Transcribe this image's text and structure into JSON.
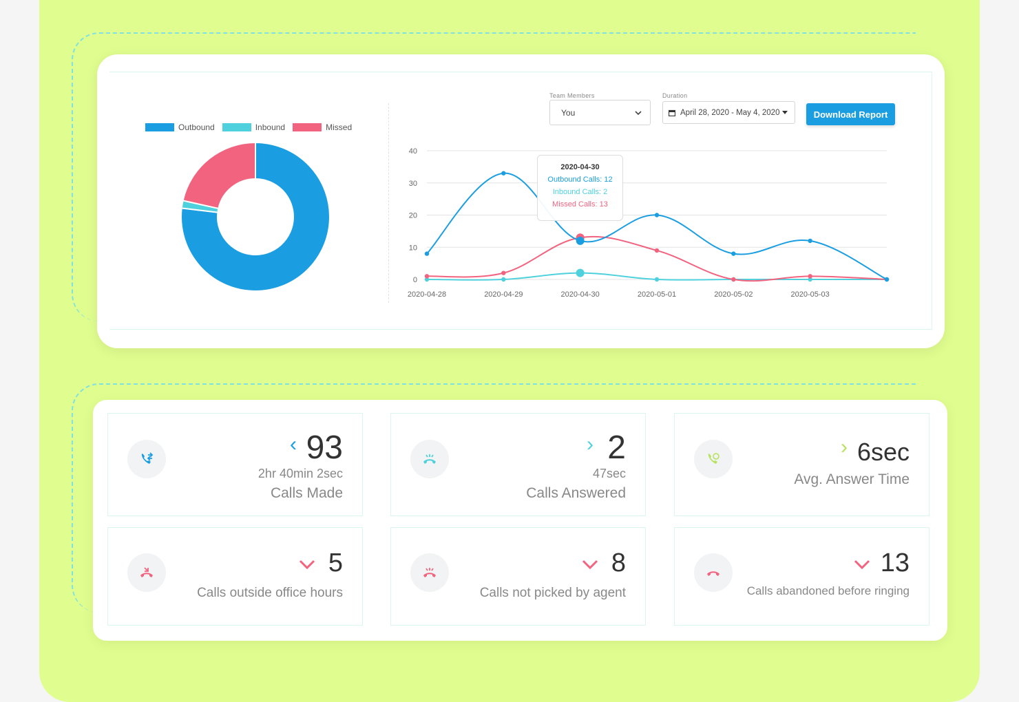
{
  "colors": {
    "outbound": "#1a9ee1",
    "inbound": "#4ed1dd",
    "missed": "#f2637f",
    "accent": "#e0fd8f",
    "up_green": "#b6e35f"
  },
  "legend": [
    "Outbound",
    "Inbound",
    "Missed"
  ],
  "filters": {
    "team_label": "Team Members",
    "team_value": "You",
    "duration_label": "Duration",
    "duration_value": "April 28, 2020 - May 4, 2020"
  },
  "download_button": "Download Report",
  "tooltip": {
    "date": "2020-04-30",
    "outbound": "Outbound Calls: 12",
    "inbound": "Inbound Calls: 2",
    "missed": "Missed Calls: 13"
  },
  "chart_data": [
    {
      "type": "pie",
      "labels": [
        "Outbound",
        "Inbound",
        "Missed"
      ],
      "values": [
        93,
        2,
        26
      ]
    },
    {
      "type": "line",
      "x": [
        "2020-04-28",
        "2020-04-29",
        "2020-04-30",
        "2020-05-01",
        "2020-05-02",
        "2020-05-03",
        "2020-05-04"
      ],
      "x_ticks": [
        "2020-04-28",
        "2020-04-29",
        "2020-04-30",
        "2020-05-01",
        "2020-05-02",
        "2020-05-03"
      ],
      "y_ticks": [
        "0",
        "10",
        "20",
        "30",
        "40"
      ],
      "ylim": [
        0,
        40
      ],
      "series": [
        {
          "name": "Outbound",
          "values": [
            8,
            33,
            12,
            20,
            8,
            12,
            0
          ]
        },
        {
          "name": "Inbound",
          "values": [
            0,
            0,
            2,
            0,
            0,
            0,
            0
          ]
        },
        {
          "name": "Missed",
          "values": [
            1,
            2,
            13,
            9,
            0,
            1,
            0
          ]
        }
      ],
      "grid": true
    }
  ],
  "stats": [
    {
      "value": "93",
      "sub": "2hr 40min 2sec",
      "title": "Calls Made",
      "trend": "left",
      "icon": "outgoing-call-icon"
    },
    {
      "value": "2",
      "sub": "47sec",
      "title": "Calls Answered",
      "trend": "right",
      "icon": "answered-call-icon"
    },
    {
      "value": "6sec",
      "sub": "",
      "title": "Avg. Answer Time",
      "trend": "right",
      "icon": "answer-time-icon"
    },
    {
      "value": "5",
      "sub": "",
      "title": "Calls outside office hours",
      "trend": "down",
      "icon": "call-outside-hours-icon"
    },
    {
      "value": "8",
      "sub": "",
      "title": "Calls not picked by agent",
      "trend": "down",
      "icon": "call-not-picked-icon"
    },
    {
      "value": "13",
      "sub": "",
      "title": "Calls abandoned before ringing",
      "trend": "down",
      "icon": "call-abandoned-icon"
    }
  ]
}
